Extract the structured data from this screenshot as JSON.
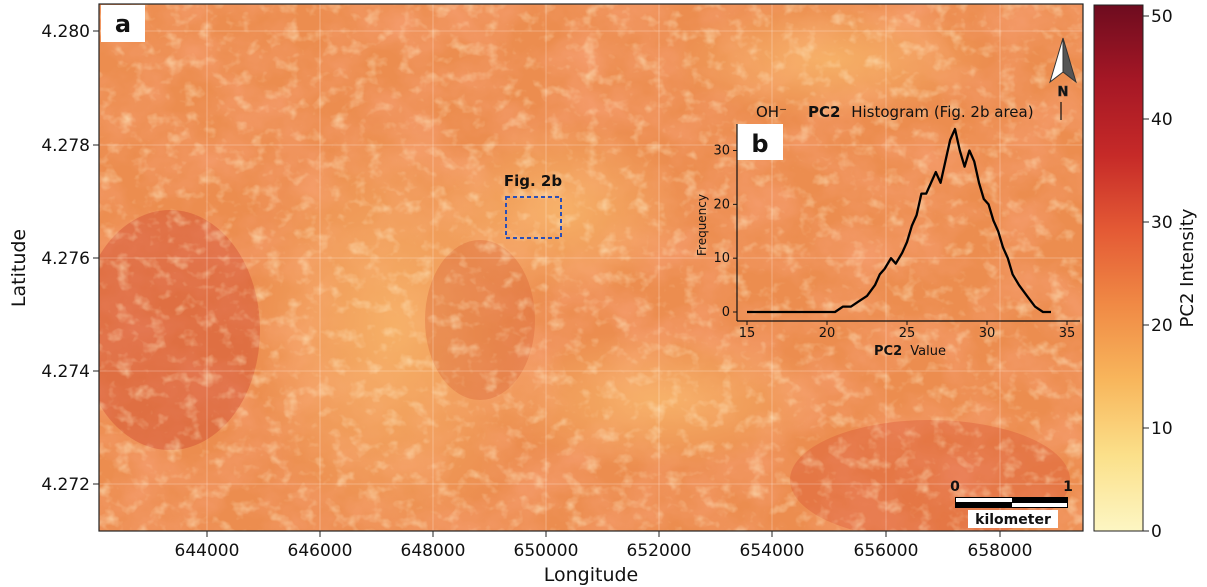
{
  "panel_a": {
    "label": "a",
    "xlabel": "Longitude",
    "ylabel": "Latitude",
    "x_ticks": [
      "644000",
      "646000",
      "648000",
      "650000",
      "652000",
      "654000",
      "656000",
      "658000"
    ],
    "y_ticks": [
      "4.280",
      "4.278",
      "4.276",
      "4.274",
      "4.272"
    ],
    "roi_label": "Fig. 2b",
    "roi_color": "#2a4fb8",
    "north_label": "N",
    "oh_label": "OH⁻",
    "scalebar": {
      "start": "0",
      "end": "1",
      "unit": "kilometer"
    }
  },
  "colorbar": {
    "label": "PC2  Intensity",
    "ticks": [
      "0",
      "10",
      "20",
      "30",
      "40",
      "50"
    ],
    "min": 0,
    "max": 50,
    "colors": [
      "#fdf6c3",
      "#fbe08a",
      "#f8b65c",
      "#f08a45",
      "#e45a35",
      "#c62a28",
      "#a51725",
      "#6e0c1f"
    ]
  },
  "chart_data": {
    "type": "line",
    "panel_label": "b",
    "title_bold": "PC2",
    "title": "Histogram (Fig. 2b area)",
    "xlabel_bold": "PC2",
    "xlabel": "Value",
    "ylabel": "Frequency",
    "xlim": [
      15,
      35
    ],
    "ylim": [
      0,
      34
    ],
    "x_ticks": [
      15,
      20,
      25,
      30,
      35
    ],
    "y_ticks": [
      0,
      10,
      20,
      30
    ],
    "series": [
      {
        "color": "#000000",
        "points": [
          [
            15,
            0
          ],
          [
            20.5,
            0
          ],
          [
            21,
            1
          ],
          [
            21.5,
            1
          ],
          [
            22,
            2
          ],
          [
            22.5,
            3
          ],
          [
            23,
            5
          ],
          [
            23.3,
            7
          ],
          [
            23.6,
            8
          ],
          [
            24,
            10
          ],
          [
            24.3,
            9
          ],
          [
            24.7,
            11
          ],
          [
            25,
            13
          ],
          [
            25.3,
            16
          ],
          [
            25.6,
            18
          ],
          [
            25.9,
            22
          ],
          [
            26.2,
            22
          ],
          [
            26.5,
            24
          ],
          [
            26.8,
            26
          ],
          [
            27.1,
            24
          ],
          [
            27.4,
            28
          ],
          [
            27.7,
            32
          ],
          [
            28,
            34
          ],
          [
            28.3,
            30
          ],
          [
            28.6,
            27
          ],
          [
            28.9,
            30
          ],
          [
            29.2,
            28
          ],
          [
            29.5,
            24
          ],
          [
            29.8,
            21
          ],
          [
            30.1,
            20
          ],
          [
            30.4,
            17
          ],
          [
            30.7,
            15
          ],
          [
            31.0,
            12
          ],
          [
            31.3,
            10
          ],
          [
            31.6,
            7
          ],
          [
            32.0,
            5
          ],
          [
            32.5,
            3
          ],
          [
            33,
            1
          ],
          [
            33.5,
            0
          ],
          [
            34,
            0
          ]
        ]
      }
    ]
  }
}
